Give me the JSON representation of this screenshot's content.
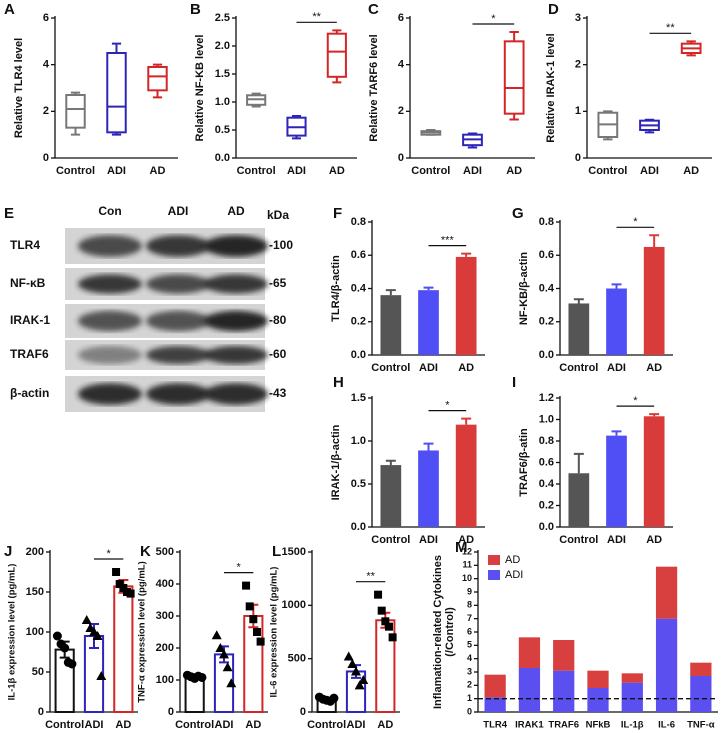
{
  "chart_data": [
    {
      "label": "A",
      "type": "box",
      "ylabel": "Relative TLR4 level",
      "categories": [
        "Control",
        "ADI",
        "AD"
      ],
      "colors": [
        "#777777",
        "#2d24b8",
        "#d32626"
      ],
      "min": [
        1.0,
        1.0,
        2.6
      ],
      "q1": [
        1.3,
        1.1,
        2.9
      ],
      "median": [
        2.1,
        2.2,
        3.5
      ],
      "q3": [
        2.7,
        4.5,
        3.9
      ],
      "max": [
        2.8,
        4.9,
        4.0
      ],
      "ylim": [
        0,
        6
      ],
      "yticks": [
        0,
        2,
        4,
        6
      ]
    },
    {
      "label": "B",
      "type": "box",
      "ylabel": "Relative NF-KB level",
      "categories": [
        "Control",
        "ADI",
        "AD"
      ],
      "colors": [
        "#777777",
        "#2d24b8",
        "#d32626"
      ],
      "min": [
        0.92,
        0.35,
        1.35
      ],
      "q1": [
        0.95,
        0.4,
        1.45
      ],
      "median": [
        1.05,
        0.55,
        1.9
      ],
      "q3": [
        1.12,
        0.72,
        2.22
      ],
      "max": [
        1.15,
        0.75,
        2.28
      ],
      "ylim": [
        0,
        2.5
      ],
      "yticks": [
        {
          "value": 0,
          "label": "0.0"
        },
        {
          "value": 0.5,
          "label": "0.5"
        },
        {
          "value": 1,
          "label": "1.0"
        },
        {
          "value": 1.5,
          "label": "1.5"
        },
        {
          "value": 2,
          "label": "2.0"
        },
        {
          "value": 2.5,
          "label": "2.5"
        }
      ],
      "annotation": {
        "text": "**",
        "between": [
          "ADI",
          "AD"
        ]
      }
    },
    {
      "label": "C",
      "type": "box",
      "ylabel": "Relative TARF6 level",
      "categories": [
        "Control",
        "ADI",
        "AD"
      ],
      "colors": [
        "#777777",
        "#2d24b8",
        "#d32626"
      ],
      "min": [
        1.0,
        0.45,
        1.65
      ],
      "q1": [
        1.0,
        0.55,
        1.9
      ],
      "median": [
        1.1,
        0.8,
        3.0
      ],
      "q3": [
        1.15,
        1.0,
        5.0
      ],
      "max": [
        1.2,
        1.05,
        5.4
      ],
      "ylim": [
        0,
        6
      ],
      "yticks": [
        0,
        2,
        4,
        6
      ],
      "annotation": {
        "text": "*",
        "between": [
          "ADI",
          "AD"
        ]
      }
    },
    {
      "label": "D",
      "type": "box",
      "ylabel": "Relative IRAK-1 level",
      "categories": [
        "Control",
        "ADI",
        "AD"
      ],
      "colors": [
        "#777777",
        "#2d24b8",
        "#d32626"
      ],
      "min": [
        0.4,
        0.55,
        2.2
      ],
      "q1": [
        0.45,
        0.6,
        2.25
      ],
      "median": [
        0.72,
        0.7,
        2.35
      ],
      "q3": [
        0.97,
        0.8,
        2.45
      ],
      "max": [
        1.0,
        0.82,
        2.5
      ],
      "ylim": [
        0,
        3
      ],
      "yticks": [
        0,
        1,
        2,
        3
      ],
      "annotation": {
        "text": "**",
        "between": [
          "ADI",
          "AD"
        ]
      }
    },
    {
      "label": "F",
      "type": "bar",
      "ylabel": "TLR4/β-actin",
      "categories": [
        "Control",
        "ADI",
        "AD"
      ],
      "colors": [
        "#555555",
        "#4f4ff5",
        "#d93a3a"
      ],
      "values": [
        0.36,
        0.39,
        0.59
      ],
      "errors": [
        0.03,
        0.015,
        0.02
      ],
      "error_bars": "up",
      "ylim": [
        0,
        0.8
      ],
      "yticks": [
        {
          "value": 0,
          "label": "0.0"
        },
        {
          "value": 0.2,
          "label": "0.2"
        },
        {
          "value": 0.4,
          "label": "0.4"
        },
        {
          "value": 0.6,
          "label": "0.6"
        },
        {
          "value": 0.8,
          "label": "0.8"
        }
      ],
      "annotation": {
        "text": "***",
        "between": [
          "ADI",
          "AD"
        ]
      }
    },
    {
      "label": "G",
      "type": "bar",
      "ylabel": "NF-KB/β-actin",
      "categories": [
        "Control",
        "ADI",
        "AD"
      ],
      "colors": [
        "#555555",
        "#4f4ff5",
        "#d93a3a"
      ],
      "values": [
        0.31,
        0.4,
        0.65
      ],
      "errors": [
        0.025,
        0.025,
        0.07
      ],
      "error_bars": "up",
      "ylim": [
        0,
        0.8
      ],
      "yticks": [
        {
          "value": 0,
          "label": "0.0"
        },
        {
          "value": 0.2,
          "label": "0.2"
        },
        {
          "value": 0.4,
          "label": "0.4"
        },
        {
          "value": 0.6,
          "label": "0.6"
        },
        {
          "value": 0.8,
          "label": "0.8"
        }
      ],
      "annotation": {
        "text": "*",
        "between": [
          "ADI",
          "AD"
        ]
      }
    },
    {
      "label": "H",
      "type": "bar",
      "ylabel": "IRAK-1/β-actin",
      "categories": [
        "Control",
        "ADI",
        "AD"
      ],
      "colors": [
        "#555555",
        "#4f4ff5",
        "#d93a3a"
      ],
      "values": [
        0.72,
        0.89,
        1.19
      ],
      "errors": [
        0.05,
        0.08,
        0.07
      ],
      "error_bars": "up",
      "ylim": [
        0,
        1.5
      ],
      "yticks": [
        {
          "value": 0,
          "label": "0.0"
        },
        {
          "value": 0.5,
          "label": "0.5"
        },
        {
          "value": 1,
          "label": "1.0"
        },
        {
          "value": 1.5,
          "label": "1.5"
        }
      ],
      "annotation": {
        "text": "*",
        "between": [
          "ADI",
          "AD"
        ]
      }
    },
    {
      "label": "I",
      "type": "bar",
      "ylabel": "TRAF6/β-atin",
      "categories": [
        "Control",
        "ADI",
        "AD"
      ],
      "colors": [
        "#555555",
        "#4f4ff5",
        "#d93a3a"
      ],
      "values": [
        0.5,
        0.85,
        1.03
      ],
      "errors": [
        0.18,
        0.04,
        0.02
      ],
      "error_bars": "up",
      "ylim": [
        0,
        1.2
      ],
      "yticks": [
        {
          "value": 0,
          "label": "0.0"
        },
        {
          "value": 0.2,
          "label": "0.2"
        },
        {
          "value": 0.4,
          "label": "0.4"
        },
        {
          "value": 0.6,
          "label": "0.6"
        },
        {
          "value": 0.8,
          "label": "0.8"
        },
        {
          "value": 1,
          "label": "1.0"
        },
        {
          "value": 1.2,
          "label": "1.2"
        }
      ],
      "annotation": {
        "text": "*",
        "between": [
          "ADI",
          "AD"
        ]
      }
    },
    {
      "label": "J",
      "type": "dotbar",
      "ylabel": "IL-1β expression level (pg/mL)",
      "categories": [
        "Control",
        "ADI",
        "AD"
      ],
      "colors": [
        "#111111",
        "#2d24b8",
        "#d32626"
      ],
      "markers": [
        "circle",
        "triangle",
        "square"
      ],
      "point_color": "#000000",
      "values": [
        78,
        95,
        157
      ],
      "errors": [
        10,
        15,
        8
      ],
      "error_bars": "both",
      "points": [
        [
          95,
          85,
          80,
          62,
          60
        ],
        [
          115,
          105,
          100,
          95,
          45
        ],
        [
          175,
          160,
          155,
          150,
          148
        ]
      ],
      "ylim": [
        0,
        200
      ],
      "yticks": [
        0,
        50,
        100,
        150,
        200
      ],
      "annotation": {
        "text": "*",
        "between": [
          "ADI",
          "AD"
        ]
      }
    },
    {
      "label": "K",
      "type": "dotbar",
      "ylabel": "TNF-α expression level (pg/mL)",
      "categories": [
        "Control",
        "ADI",
        "AD"
      ],
      "colors": [
        "#111111",
        "#2d24b8",
        "#d32626"
      ],
      "markers": [
        "circle",
        "triangle",
        "square"
      ],
      "point_color": "#000000",
      "values": [
        110,
        180,
        300
      ],
      "errors": [
        8,
        25,
        35
      ],
      "error_bars": "both",
      "points": [
        [
          115,
          110,
          105,
          112,
          108
        ],
        [
          240,
          200,
          180,
          140,
          90
        ],
        [
          395,
          330,
          290,
          250,
          220
        ]
      ],
      "ylim": [
        0,
        500
      ],
      "yticks": [
        0,
        100,
        200,
        300,
        400,
        500
      ],
      "annotation": {
        "text": "*",
        "between": [
          "ADI",
          "AD"
        ]
      }
    },
    {
      "label": "L",
      "type": "dotbar",
      "ylabel": "IL-6 expression level (pg/mL)",
      "categories": [
        "Control",
        "ADI",
        "AD"
      ],
      "colors": [
        "#111111",
        "#2d24b8",
        "#d32626"
      ],
      "markers": [
        "circle",
        "triangle",
        "square"
      ],
      "point_color": "#000000",
      "values": [
        120,
        380,
        860
      ],
      "errors": [
        15,
        60,
        70
      ],
      "error_bars": "both",
      "points": [
        [
          140,
          120,
          110,
          100,
          130
        ],
        [
          520,
          450,
          380,
          250,
          300
        ],
        [
          1100,
          950,
          850,
          800,
          700
        ]
      ],
      "ylim": [
        0,
        1500
      ],
      "yticks": [
        0,
        500,
        1000,
        1500
      ],
      "annotation": {
        "text": "**",
        "between": [
          "ADI",
          "AD"
        ]
      }
    },
    {
      "label": "M",
      "type": "stacked_bar",
      "ylabel": [
        "Inflamation-related Cytokines",
        "(/Control)"
      ],
      "categories": [
        "TLR4",
        "IRAK1",
        "TRAF6",
        "NFkB",
        "IL-1β",
        "IL-6",
        "TNF-α"
      ],
      "series": [
        {
          "name": "ADI",
          "color": "#5b4ff0",
          "values": [
            1.1,
            3.3,
            3.1,
            1.8,
            2.2,
            7.0,
            2.7
          ]
        },
        {
          "name": "AD",
          "color": "#d84040",
          "values": [
            1.7,
            2.3,
            2.3,
            1.3,
            0.7,
            3.9,
            1.0
          ]
        }
      ],
      "ylim": [
        0,
        12
      ],
      "yticks": [
        0,
        1,
        2,
        3,
        4,
        5,
        6,
        7,
        8,
        9,
        10,
        11,
        12
      ],
      "reference_line": 1,
      "legend": "top-left"
    }
  ],
  "western_blot": {
    "label": "E",
    "lanes": [
      "Con",
      "ADI",
      "AD"
    ],
    "unit": "kDa",
    "rows": [
      {
        "protein": "TLR4",
        "size": "-100"
      },
      {
        "protein": "NF-κB",
        "size": "-65"
      },
      {
        "protein": "IRAK-1",
        "size": "-80"
      },
      {
        "protein": "TRAF6",
        "size": "-60"
      },
      {
        "protein": "β-actin",
        "size": "-43"
      }
    ]
  }
}
